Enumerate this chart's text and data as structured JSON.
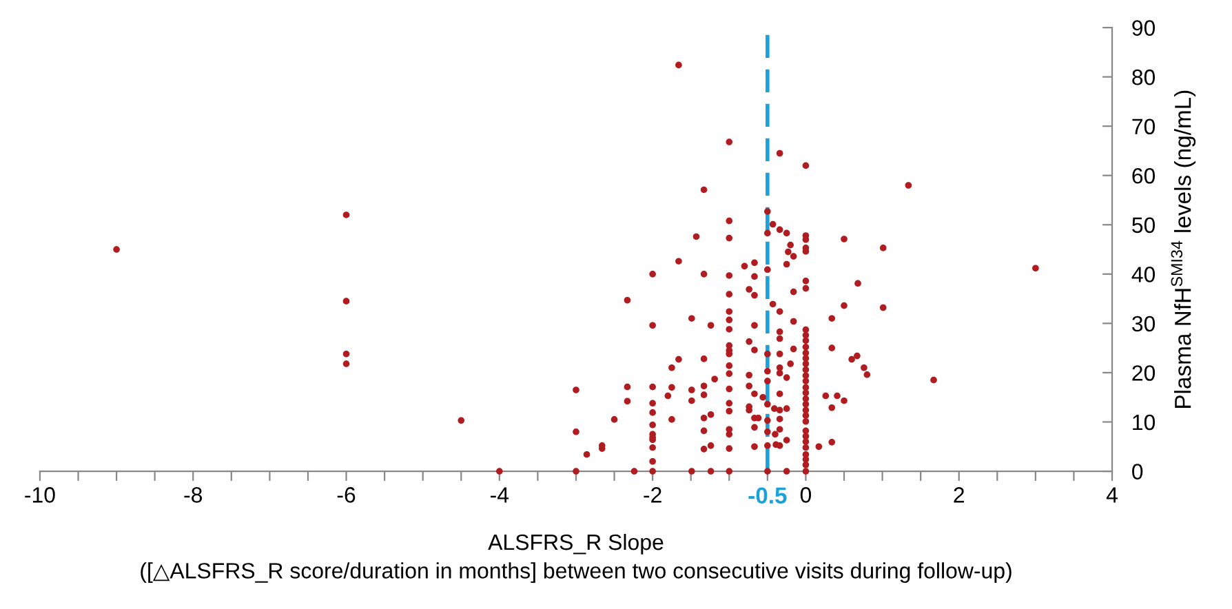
{
  "chart_data": {
    "type": "scatter",
    "xlabel": "ALSFRS_R Slope\n([△ALSFRS_R score/duration in months] between two consecutive visits during follow-up)",
    "ylabel": "Plasma NfH$^{SMI34}$ levels (ng/mL)",
    "xlim": [
      -10,
      4
    ],
    "xticks": [
      -10,
      {
        "value": -9.5,
        "label": null
      },
      {
        "value": -9,
        "label": null
      },
      {
        "value": -8.5,
        "label": null
      },
      -8,
      {
        "value": -7.5,
        "label": null
      },
      {
        "value": -7,
        "label": null
      },
      {
        "value": -6.5,
        "label": null
      },
      -6,
      {
        "value": -5.5,
        "label": null
      },
      {
        "value": -5,
        "label": null
      },
      {
        "value": -4.5,
        "label": null
      },
      -4,
      {
        "value": -3.5,
        "label": null
      },
      {
        "value": -3,
        "label": null
      },
      {
        "value": -2.5,
        "label": null
      },
      -2,
      {
        "value": -1.5,
        "label": null
      },
      {
        "value": -1,
        "label": null
      },
      {
        "value": -0.5,
        "label": null
      },
      0,
      {
        "value": 0.5,
        "label": null
      },
      {
        "value": 1,
        "label": null
      },
      {
        "value": 1.5,
        "label": null
      },
      2,
      {
        "value": 2.5,
        "label": null
      },
      {
        "value": 3,
        "label": null
      },
      {
        "value": 3.5,
        "label": null
      },
      4
    ],
    "ylim": [
      0,
      90
    ],
    "yticks": [
      0,
      10,
      20,
      30,
      40,
      50,
      60,
      70,
      80,
      90
    ],
    "grid": false,
    "legend": false,
    "marker": "circle",
    "ref_lines": [
      {
        "axis": "x",
        "value": -0.5,
        "label": "-0.5",
        "color": "#1ba1d9",
        "line_style": "dashed"
      }
    ],
    "series": [
      {
        "color": "#b01c20",
        "x": [
          -9,
          -6,
          -6,
          -6,
          -6,
          -4.5,
          -4,
          -3,
          -3,
          -3,
          -2.86,
          -2.66,
          -2.66,
          -2.5,
          -2.33,
          -2.33,
          -2.33,
          -2.24,
          -2,
          -2,
          -2,
          -2,
          -2,
          -2,
          -2,
          -2,
          -2,
          -2,
          -2,
          -2,
          -1.8,
          -1.75,
          -1.75,
          -1.75,
          -1.66,
          -1.66,
          -1.66,
          -1.49,
          -1.49,
          -1.49,
          -1.49,
          -1.43,
          -1.33,
          -1.33,
          -1.33,
          -1.33,
          -1.33,
          -1.33,
          -1.33,
          -1.33,
          -1.24,
          -1.24,
          -1.24,
          -1.24,
          -1.19,
          -1,
          -1,
          -1,
          -1,
          -1,
          -1,
          -1,
          -1,
          -1,
          -1,
          -1,
          -1,
          -1,
          -1,
          -1,
          -1,
          -1,
          -1,
          -1,
          -1,
          -0.8,
          -0.74,
          -0.74,
          -0.74,
          -0.74,
          -0.74,
          -0.74,
          -0.67,
          -0.67,
          -0.67,
          -0.67,
          -0.67,
          -0.67,
          -0.67,
          -0.67,
          -0.67,
          -0.62,
          -0.56,
          -0.5,
          -0.5,
          -0.5,
          -0.5,
          -0.5,
          -0.5,
          -0.5,
          -0.5,
          -0.5,
          -0.5,
          -0.5,
          -0.43,
          -0.43,
          -0.4,
          -0.39,
          -0.41,
          -0.34,
          -0.34,
          -0.34,
          -0.34,
          -0.34,
          -0.34,
          -0.34,
          -0.34,
          -0.34,
          -0.34,
          -0.34,
          -0.34,
          -0.34,
          -0.25,
          -0.25,
          -0.25,
          -0.25,
          -0.25,
          -0.25,
          -0.2,
          -0.23,
          -0.16,
          -0.16,
          -0.16,
          -0.16,
          -0.2,
          0,
          0,
          0,
          0,
          0,
          0,
          0,
          0,
          0,
          0,
          0,
          0,
          0,
          0,
          0,
          0,
          0,
          0,
          0,
          0,
          0,
          0,
          0,
          0,
          0,
          0,
          0,
          0,
          0,
          0,
          0,
          0,
          0.17,
          0.26,
          0.34,
          0.34,
          0.34,
          0.34,
          0.41,
          0.5,
          0.5,
          0.5,
          0.6,
          0.67,
          0.68,
          0.76,
          0.8,
          1.01,
          1.01,
          1.34,
          1.67,
          3
        ],
        "values": [
          45,
          52,
          34.5,
          23.8,
          21.8,
          10.3,
          0,
          16.5,
          8,
          0,
          3.4,
          5.2,
          4.6,
          10.5,
          34.7,
          17.1,
          14.2,
          0,
          40,
          29.6,
          17.1,
          13.8,
          11.9,
          9.4,
          7.5,
          6.9,
          6.4,
          4.8,
          2,
          0,
          15.3,
          21,
          17,
          10.5,
          82.4,
          42.6,
          22.7,
          31,
          16.5,
          14.3,
          0,
          47.6,
          57.1,
          40,
          22.8,
          17.3,
          15.5,
          10.8,
          8.2,
          4.5,
          5.2,
          11.5,
          29.6,
          0,
          18.7,
          66.8,
          50.8,
          47.3,
          39.7,
          35.9,
          32.4,
          30.7,
          28.8,
          25.5,
          24.5,
          23.8,
          21.4,
          19.8,
          16.7,
          13.8,
          12.2,
          8.5,
          7.5,
          4.6,
          0,
          41.6,
          36.9,
          26.3,
          19.5,
          17.3,
          13.1,
          12.4,
          42.3,
          39.5,
          35.7,
          29.6,
          24.6,
          15.7,
          10.8,
          8.9,
          5,
          10.8,
          15,
          52.7,
          48.3,
          40.9,
          23.8,
          20.3,
          18.3,
          13.6,
          10.3,
          8,
          5.2,
          0,
          50.1,
          33.9,
          7.5,
          5.4,
          12.7,
          64.5,
          49,
          32.4,
          28.3,
          26.9,
          23.8,
          21,
          19.9,
          15.7,
          12.4,
          10.6,
          8.5,
          5.2,
          48.3,
          42,
          19,
          12.7,
          6.3,
          0,
          45.9,
          44.5,
          43.6,
          36.4,
          30.4,
          24.8,
          21.8,
          62,
          47.8,
          47,
          45.3,
          44.6,
          38.6,
          37.1,
          28.7,
          27.6,
          26.5,
          25.2,
          24,
          22.9,
          21.8,
          20.6,
          19.4,
          18.3,
          17,
          15.9,
          14.7,
          13.6,
          12.4,
          11.3,
          10.1,
          8.2,
          7.1,
          6,
          4.8,
          3.4,
          2.4,
          1.3,
          0,
          5,
          15.3,
          31,
          12.9,
          5.9,
          25,
          15.3,
          47.1,
          33.6,
          14.3,
          22.7,
          23.4,
          38.1,
          21,
          19.6,
          45.3,
          33.2,
          58,
          18.5,
          41.2
        ]
      }
    ]
  }
}
